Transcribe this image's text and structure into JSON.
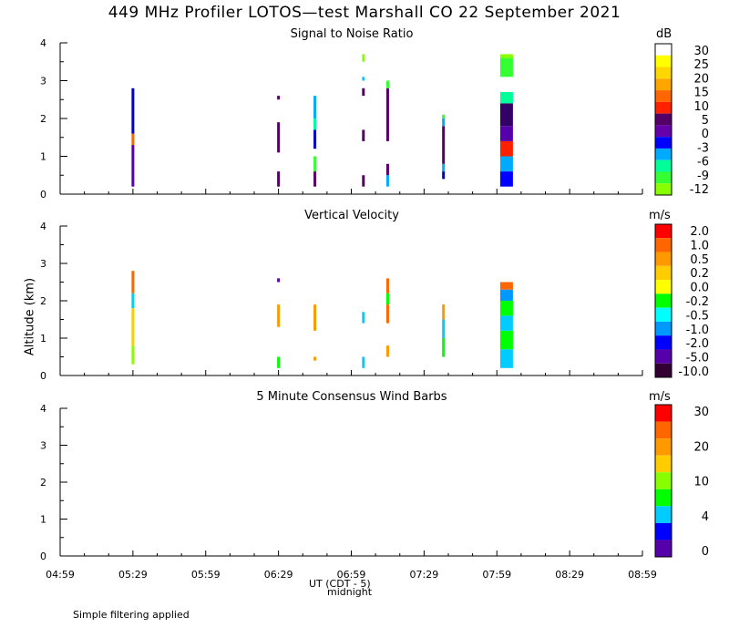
{
  "title": "449 MHz Profiler LOTOS—test Marshall CO 22 September 2021",
  "ylabel": "Altitude (km)",
  "xlabel": "UT  (CDT - 5)",
  "xnote": "midnight",
  "footer": "Simple filtering applied",
  "x_ticks": [
    "04:59",
    "05:29",
    "05:59",
    "06:29",
    "06:59",
    "07:29",
    "07:59",
    "08:29",
    "08:59"
  ],
  "y_ticks": [
    "0",
    "1",
    "2",
    "3",
    "4"
  ],
  "chart_data": [
    {
      "type": "heatmap",
      "title": "Signal to Noise Ratio",
      "unit": "dB",
      "ylim": [
        0,
        4
      ],
      "colorbar": {
        "labels": [
          "30",
          "25",
          "20",
          "15",
          "10",
          "5",
          "0",
          "-3",
          "-6",
          "-9",
          "-12"
        ],
        "colors": [
          "#ffffff",
          "#ffff00",
          "#ffd700",
          "#ffa500",
          "#ff6600",
          "#ff2000",
          "#550066",
          "#6600aa",
          "#0000ff",
          "#00aaff",
          "#00ff99",
          "#33ff33",
          "#88ff00"
        ]
      },
      "columns": [
        {
          "time": "05:29",
          "segments": [
            {
              "y0": 0.2,
              "y1": 1.3,
              "v": "#5500aa"
            },
            {
              "y0": 1.3,
              "y1": 1.6,
              "v": "#ff6600"
            },
            {
              "y0": 1.6,
              "y1": 2.8,
              "v": "#0000cc"
            }
          ]
        },
        {
          "time": "06:29",
          "segments": [
            {
              "y0": 0.2,
              "y1": 0.6,
              "v": "#550066"
            },
            {
              "y0": 1.1,
              "y1": 1.9,
              "v": "#550066"
            },
            {
              "y0": 2.5,
              "y1": 2.6,
              "v": "#550066"
            }
          ]
        },
        {
          "time": "06:44",
          "segments": [
            {
              "y0": 0.2,
              "y1": 0.6,
              "v": "#550066"
            },
            {
              "y0": 0.6,
              "y1": 1.0,
              "v": "#33ff33"
            },
            {
              "y0": 1.2,
              "y1": 1.7,
              "v": "#0000cc"
            },
            {
              "y0": 1.7,
              "y1": 2.0,
              "v": "#00ff99"
            },
            {
              "y0": 2.0,
              "y1": 2.6,
              "v": "#00aaff"
            }
          ]
        },
        {
          "time": "07:04",
          "segments": [
            {
              "y0": 0.2,
              "y1": 0.5,
              "v": "#550066"
            },
            {
              "y0": 1.4,
              "y1": 1.7,
              "v": "#550066"
            },
            {
              "y0": 2.6,
              "y1": 2.8,
              "v": "#550066"
            },
            {
              "y0": 3.0,
              "y1": 3.1,
              "v": "#00ccff"
            },
            {
              "y0": 3.5,
              "y1": 3.7,
              "v": "#88ff00"
            }
          ]
        },
        {
          "time": "07:14",
          "segments": [
            {
              "y0": 0.2,
              "y1": 0.5,
              "v": "#00aaff"
            },
            {
              "y0": 0.5,
              "y1": 0.8,
              "v": "#550066"
            },
            {
              "y0": 1.4,
              "y1": 2.8,
              "v": "#550066"
            },
            {
              "y0": 2.8,
              "y1": 3.0,
              "v": "#33ff33"
            }
          ]
        },
        {
          "time": "07:37",
          "segments": [
            {
              "y0": 0.4,
              "y1": 0.6,
              "v": "#0000cc"
            },
            {
              "y0": 0.6,
              "y1": 0.8,
              "v": "#00aaff"
            },
            {
              "y0": 0.8,
              "y1": 1.8,
              "v": "#550066"
            },
            {
              "y0": 1.8,
              "y1": 2.0,
              "v": "#00aaff"
            },
            {
              "y0": 2.0,
              "y1": 2.1,
              "v": "#33ff33"
            }
          ]
        },
        {
          "time": "08:03",
          "wide": true,
          "segments": [
            {
              "y0": 0.2,
              "y1": 0.6,
              "v": "#0000ff"
            },
            {
              "y0": 0.6,
              "y1": 1.0,
              "v": "#00aaff"
            },
            {
              "y0": 1.0,
              "y1": 1.4,
              "v": "#ff2000"
            },
            {
              "y0": 1.4,
              "y1": 1.8,
              "v": "#5500aa"
            },
            {
              "y0": 1.8,
              "y1": 2.4,
              "v": "#330066"
            },
            {
              "y0": 2.4,
              "y1": 2.7,
              "v": "#00ff99"
            },
            {
              "y0": 3.1,
              "y1": 3.6,
              "v": "#33ff33"
            },
            {
              "y0": 3.6,
              "y1": 3.7,
              "v": "#88ff00"
            }
          ]
        }
      ]
    },
    {
      "type": "heatmap",
      "title": "Vertical Velocity",
      "unit": "m/s",
      "ylim": [
        0,
        4
      ],
      "colorbar": {
        "labels": [
          "2.0",
          "1.0",
          "0.5",
          "0.2",
          "0.0",
          "-0.2",
          "-0.5",
          "-1.0",
          "-2.0",
          "-5.0",
          "-10.0"
        ],
        "colors": [
          "#ff0000",
          "#ff6600",
          "#ff9900",
          "#ffcc00",
          "#ffff00",
          "#00ff00",
          "#00ffff",
          "#0099ff",
          "#0000ff",
          "#5500aa",
          "#330033"
        ]
      },
      "columns": [
        {
          "time": "05:29",
          "segments": [
            {
              "y0": 0.3,
              "y1": 0.8,
              "v": "#88ff00"
            },
            {
              "y0": 0.8,
              "y1": 1.8,
              "v": "#ffcc00"
            },
            {
              "y0": 1.8,
              "y1": 2.2,
              "v": "#00ccff"
            },
            {
              "y0": 2.2,
              "y1": 2.8,
              "v": "#ff6600"
            }
          ]
        },
        {
          "time": "06:29",
          "segments": [
            {
              "y0": 0.2,
              "y1": 0.5,
              "v": "#00ff00"
            },
            {
              "y0": 1.3,
              "y1": 1.9,
              "v": "#ff9900"
            },
            {
              "y0": 2.5,
              "y1": 2.6,
              "v": "#5500aa"
            }
          ]
        },
        {
          "time": "06:44",
          "segments": [
            {
              "y0": 0.4,
              "y1": 0.5,
              "v": "#ff9900"
            },
            {
              "y0": 1.2,
              "y1": 1.9,
              "v": "#ff9900"
            }
          ]
        },
        {
          "time": "07:04",
          "segments": [
            {
              "y0": 0.2,
              "y1": 0.5,
              "v": "#00ccff"
            },
            {
              "y0": 1.4,
              "y1": 1.7,
              "v": "#00ccff"
            }
          ]
        },
        {
          "time": "07:14",
          "segments": [
            {
              "y0": 0.5,
              "y1": 0.8,
              "v": "#ff9900"
            },
            {
              "y0": 1.4,
              "y1": 1.9,
              "v": "#ff6600"
            },
            {
              "y0": 1.9,
              "y1": 2.2,
              "v": "#00ff00"
            },
            {
              "y0": 2.2,
              "y1": 2.6,
              "v": "#ff6600"
            }
          ]
        },
        {
          "time": "07:37",
          "segments": [
            {
              "y0": 0.5,
              "y1": 1.0,
              "v": "#00ff00"
            },
            {
              "y0": 1.0,
              "y1": 1.5,
              "v": "#00ccff"
            },
            {
              "y0": 1.5,
              "y1": 1.9,
              "v": "#ff9900"
            }
          ]
        },
        {
          "time": "08:03",
          "wide": true,
          "segments": [
            {
              "y0": 0.2,
              "y1": 0.7,
              "v": "#00ccff"
            },
            {
              "y0": 0.7,
              "y1": 1.2,
              "v": "#00ff00"
            },
            {
              "y0": 1.2,
              "y1": 1.6,
              "v": "#00ccff"
            },
            {
              "y0": 1.6,
              "y1": 2.0,
              "v": "#00ff00"
            },
            {
              "y0": 2.0,
              "y1": 2.3,
              "v": "#0099ff"
            },
            {
              "y0": 2.3,
              "y1": 2.5,
              "v": "#ff6600"
            }
          ]
        }
      ]
    },
    {
      "type": "heatmap",
      "title": "5 Minute Consensus Wind Barbs",
      "unit": "m/s",
      "ylim": [
        0,
        4
      ],
      "colorbar": {
        "labels": [
          "30",
          "20",
          "10",
          "4",
          "0"
        ],
        "colors": [
          "#ff0000",
          "#ff6600",
          "#ff9900",
          "#ffcc00",
          "#88ff00",
          "#00ff00",
          "#00ccff",
          "#0000ff",
          "#5500aa"
        ]
      },
      "columns": []
    }
  ]
}
